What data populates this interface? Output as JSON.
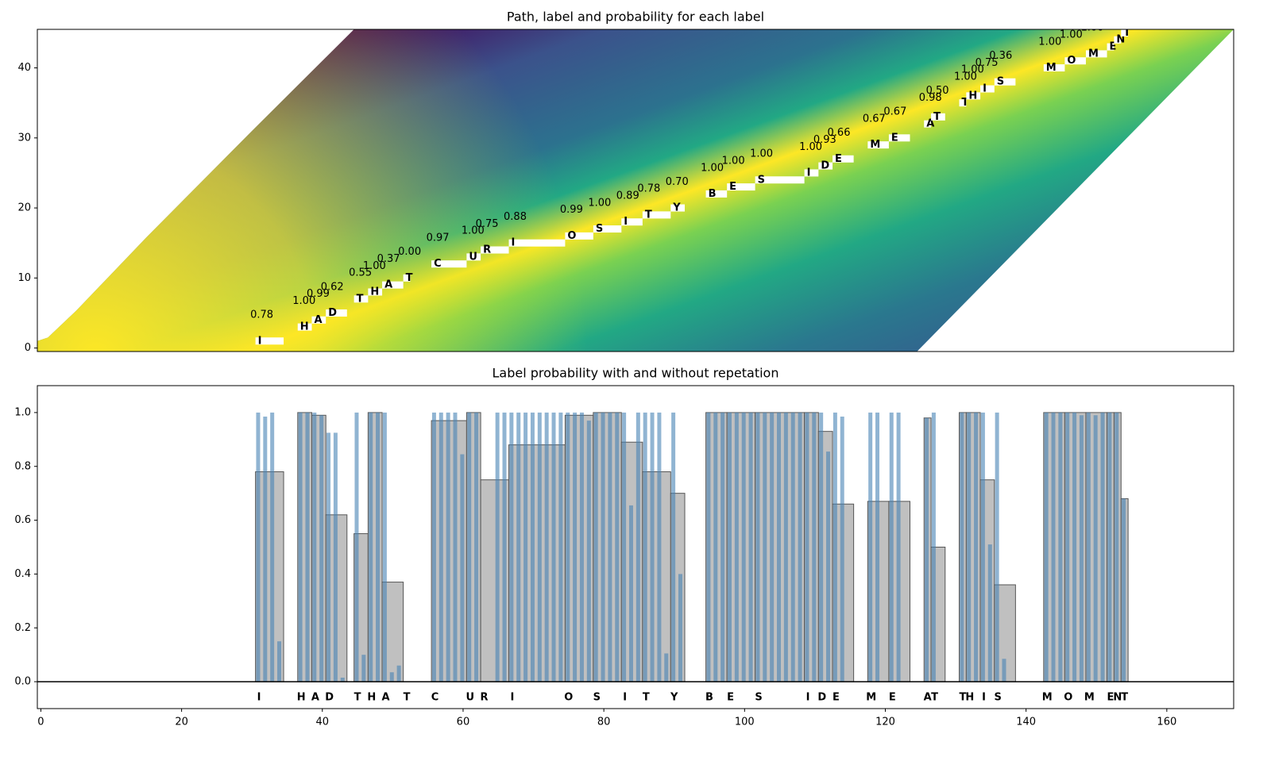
{
  "chart_data": [
    {
      "type": "trellis",
      "title": "Path, label and probability for each label",
      "xlim": [
        -0.5,
        169.5
      ],
      "ylim": [
        -0.5,
        45.5
      ],
      "yticks": [
        0,
        10,
        20,
        30,
        40
      ],
      "tokens": [
        {
          "label": "I",
          "row": 1,
          "start": 30.5,
          "end": 34.5,
          "score": 0.78,
          "score_label": "0.78"
        },
        {
          "label": "H",
          "row": 3,
          "start": 36.5,
          "end": 38.5,
          "score": 1,
          "score_label": "1.00"
        },
        {
          "label": "A",
          "row": 4,
          "start": 38.5,
          "end": 40.5,
          "score": 0.99,
          "score_label": "0.99"
        },
        {
          "label": "D",
          "row": 5,
          "start": 40.5,
          "end": 43.5,
          "score": 0.62,
          "score_label": "0.62"
        },
        {
          "label": "T",
          "row": 7,
          "start": 44.5,
          "end": 46.5,
          "score": 0.55,
          "score_label": "0.55"
        },
        {
          "label": "H",
          "row": 8,
          "start": 46.5,
          "end": 48.5,
          "score": 1,
          "score_label": "1.00"
        },
        {
          "label": "A",
          "row": 9,
          "start": 48.5,
          "end": 51.5,
          "score": 0.37,
          "score_label": "0.37"
        },
        {
          "label": "T",
          "row": 10,
          "start": 51.5,
          "end": 52.5,
          "score": 0,
          "score_label": "0.00"
        },
        {
          "label": "C",
          "row": 12,
          "start": 55.5,
          "end": 60.5,
          "score": 0.97,
          "score_label": "0.97"
        },
        {
          "label": "U",
          "row": 13,
          "start": 60.5,
          "end": 62.5,
          "score": 1,
          "score_label": "1.00"
        },
        {
          "label": "R",
          "row": 14,
          "start": 62.5,
          "end": 66.5,
          "score": 0.75,
          "score_label": "0.75"
        },
        {
          "label": "I",
          "row": 15,
          "start": 66.5,
          "end": 74.5,
          "score": 0.88,
          "score_label": "0.88"
        },
        {
          "label": "O",
          "row": 16,
          "start": 74.5,
          "end": 78.5,
          "score": 0.99,
          "score_label": "0.99"
        },
        {
          "label": "S",
          "row": 17,
          "start": 78.5,
          "end": 82.5,
          "score": 1,
          "score_label": "1.00"
        },
        {
          "label": "I",
          "row": 18,
          "start": 82.5,
          "end": 85.5,
          "score": 0.89,
          "score_label": "0.89"
        },
        {
          "label": "T",
          "row": 19,
          "start": 85.5,
          "end": 89.5,
          "score": 0.78,
          "score_label": "0.78"
        },
        {
          "label": "Y",
          "row": 20,
          "start": 89.5,
          "end": 91.5,
          "score": 0.7,
          "score_label": "0.70"
        },
        {
          "label": "B",
          "row": 22,
          "start": 94.5,
          "end": 97.5,
          "score": 1,
          "score_label": "1.00"
        },
        {
          "label": "E",
          "row": 23,
          "start": 97.5,
          "end": 101.5,
          "score": 1,
          "score_label": "1.00"
        },
        {
          "label": "S",
          "row": 24,
          "start": 101.5,
          "end": 108.5,
          "score": 1,
          "score_label": "1.00"
        },
        {
          "label": "I",
          "row": 25,
          "start": 108.5,
          "end": 110.5,
          "score": 1,
          "score_label": "1.00"
        },
        {
          "label": "D",
          "row": 26,
          "start": 110.5,
          "end": 112.5,
          "score": 0.93,
          "score_label": "0.93"
        },
        {
          "label": "E",
          "row": 27,
          "start": 112.5,
          "end": 115.5,
          "score": 0.66,
          "score_label": "0.66"
        },
        {
          "label": "M",
          "row": 29,
          "start": 117.5,
          "end": 120.5,
          "score": 0.67,
          "score_label": "0.67"
        },
        {
          "label": "E",
          "row": 30,
          "start": 120.5,
          "end": 123.5,
          "score": 0.67,
          "score_label": "0.67"
        },
        {
          "label": "A",
          "row": 32,
          "start": 125.5,
          "end": 126.5,
          "score": 0.98,
          "score_label": "0.98"
        },
        {
          "label": "T",
          "row": 33,
          "start": 126.5,
          "end": 128.5,
          "score": 0.5,
          "score_label": "0.50"
        },
        {
          "label": "T",
          "row": 35,
          "start": 130.5,
          "end": 131.5,
          "score": 1,
          "score_label": "1.00"
        },
        {
          "label": "H",
          "row": 36,
          "start": 131.5,
          "end": 133.5,
          "score": 1,
          "score_label": "1.00"
        },
        {
          "label": "I",
          "row": 37,
          "start": 133.5,
          "end": 135.5,
          "score": 0.75,
          "score_label": "0.75"
        },
        {
          "label": "S",
          "row": 38,
          "start": 135.5,
          "end": 138.5,
          "score": 0.36,
          "score_label": "0.36"
        },
        {
          "label": "M",
          "row": 40,
          "start": 142.5,
          "end": 145.5,
          "score": 1,
          "score_label": "1.00"
        },
        {
          "label": "O",
          "row": 41,
          "start": 145.5,
          "end": 148.5,
          "score": 1,
          "score_label": "1.00"
        },
        {
          "label": "M",
          "row": 42,
          "start": 148.5,
          "end": 151.5,
          "score": 1,
          "score_label": "1.00"
        },
        {
          "label": "E",
          "row": 43,
          "start": 151.5,
          "end": 152.5
        },
        {
          "label": "N",
          "row": 44,
          "start": 152.5,
          "end": 153.5
        },
        {
          "label": "T",
          "row": 45,
          "start": 153.5,
          "end": 154.5
        }
      ]
    },
    {
      "type": "bar",
      "title": "Label probability with and without repetation",
      "xlim": [
        -0.5,
        169.5
      ],
      "xticks": [
        0,
        20,
        40,
        60,
        80,
        100,
        120,
        140,
        160
      ],
      "ylim": [
        -0.1,
        1.1
      ],
      "yticks": [
        {
          "value": 0,
          "label": "0.0"
        },
        {
          "value": 0.2,
          "label": "0.2"
        },
        {
          "value": 0.4,
          "label": "0.4"
        },
        {
          "value": 0.6,
          "label": "0.6"
        },
        {
          "value": 0.8,
          "label": "0.8"
        },
        {
          "value": 1,
          "label": "1.0"
        }
      ],
      "segments": [
        {
          "label": "I",
          "start": 30.5,
          "end": 34.5,
          "value": 0.78
        },
        {
          "label": "H",
          "start": 36.5,
          "end": 38.5,
          "value": 1
        },
        {
          "label": "A",
          "start": 38.5,
          "end": 40.5,
          "value": 0.99
        },
        {
          "label": "D",
          "start": 40.5,
          "end": 43.5,
          "value": 0.62
        },
        {
          "label": "T",
          "start": 44.5,
          "end": 46.5,
          "value": 0.55
        },
        {
          "label": "H",
          "start": 46.5,
          "end": 48.5,
          "value": 1
        },
        {
          "label": "A",
          "start": 48.5,
          "end": 51.5,
          "value": 0.37
        },
        {
          "label": "T",
          "start": 51.5,
          "end": 52.5,
          "value": 0
        },
        {
          "label": "C",
          "start": 55.5,
          "end": 60.5,
          "value": 0.97
        },
        {
          "label": "U",
          "start": 60.5,
          "end": 62.5,
          "value": 1
        },
        {
          "label": "R",
          "start": 62.5,
          "end": 66.5,
          "value": 0.75
        },
        {
          "label": "I",
          "start": 66.5,
          "end": 74.5,
          "value": 0.88
        },
        {
          "label": "O",
          "start": 74.5,
          "end": 78.5,
          "value": 0.99
        },
        {
          "label": "S",
          "start": 78.5,
          "end": 82.5,
          "value": 1
        },
        {
          "label": "I",
          "start": 82.5,
          "end": 85.5,
          "value": 0.89
        },
        {
          "label": "T",
          "start": 85.5,
          "end": 89.5,
          "value": 0.78
        },
        {
          "label": "Y",
          "start": 89.5,
          "end": 91.5,
          "value": 0.7
        },
        {
          "label": "B",
          "start": 94.5,
          "end": 97.5,
          "value": 1
        },
        {
          "label": "E",
          "start": 97.5,
          "end": 101.5,
          "value": 1
        },
        {
          "label": "S",
          "start": 101.5,
          "end": 108.5,
          "value": 1
        },
        {
          "label": "I",
          "start": 108.5,
          "end": 110.5,
          "value": 1
        },
        {
          "label": "D",
          "start": 110.5,
          "end": 112.5,
          "value": 0.93
        },
        {
          "label": "E",
          "start": 112.5,
          "end": 115.5,
          "value": 0.66
        },
        {
          "label": "M",
          "start": 117.5,
          "end": 120.5,
          "value": 0.67
        },
        {
          "label": "E",
          "start": 120.5,
          "end": 123.5,
          "value": 0.67
        },
        {
          "label": "A",
          "start": 125.5,
          "end": 126.5,
          "value": 0.98
        },
        {
          "label": "T",
          "start": 126.5,
          "end": 128.5,
          "value": 0.5
        },
        {
          "label": "T",
          "start": 130.5,
          "end": 131.5,
          "value": 1
        },
        {
          "label": "H",
          "start": 131.5,
          "end": 133.5,
          "value": 1
        },
        {
          "label": "I",
          "start": 133.5,
          "end": 135.5,
          "value": 0.75
        },
        {
          "label": "S",
          "start": 135.5,
          "end": 138.5,
          "value": 0.36
        },
        {
          "label": "M",
          "start": 142.5,
          "end": 145.5,
          "value": 1
        },
        {
          "label": "O",
          "start": 145.5,
          "end": 148.5,
          "value": 1
        },
        {
          "label": "M",
          "start": 148.5,
          "end": 151.5,
          "value": 1
        },
        {
          "label": "E",
          "start": 151.5,
          "end": 152.5,
          "value": 1
        },
        {
          "label": "N",
          "start": 152.5,
          "end": 153.5,
          "value": 1
        },
        {
          "label": "T",
          "start": 153.5,
          "end": 154.5,
          "value": 0.68
        }
      ],
      "frames": {
        "x": [
          31,
          32,
          33,
          34,
          37,
          38,
          39,
          40,
          41,
          42,
          43,
          45,
          46,
          47,
          48,
          49,
          50,
          51,
          56,
          57,
          58,
          59,
          60,
          61,
          62,
          65,
          66,
          67,
          68,
          69,
          70,
          71,
          72,
          73,
          74,
          75,
          76,
          77,
          78,
          79,
          80,
          81,
          82,
          83,
          84,
          85,
          86,
          87,
          88,
          89,
          90,
          91,
          95,
          96,
          97,
          98,
          99,
          100,
          101,
          102,
          103,
          104,
          105,
          106,
          107,
          108,
          109,
          110,
          111,
          112,
          113,
          114,
          118,
          119,
          121,
          122,
          126,
          127,
          131,
          132,
          133,
          134,
          135,
          136,
          137,
          143,
          144,
          145,
          146,
          147,
          148,
          149,
          150,
          151,
          152,
          153,
          154
        ],
        "values": [
          1,
          0.985,
          1,
          0.15,
          1,
          1,
          1,
          0.99,
          0.925,
          0.925,
          0.015,
          1,
          0.1,
          1,
          1,
          1,
          0.035,
          0.06,
          1,
          1,
          1,
          1,
          0.845,
          1,
          1,
          1,
          1,
          1,
          1,
          1,
          1,
          1,
          1,
          1,
          1,
          1,
          1,
          1,
          0.97,
          1,
          1,
          1,
          1,
          1,
          0.655,
          1,
          1,
          1,
          1,
          0.105,
          1,
          0.4,
          1,
          1,
          1,
          1,
          1,
          1,
          1,
          1,
          1,
          1,
          1,
          1,
          1,
          1,
          1,
          1,
          1,
          0.855,
          1,
          0.985,
          1,
          1,
          1,
          1,
          0.98,
          1,
          1,
          1,
          1,
          1,
          0.51,
          1,
          0.085,
          1,
          1,
          1,
          1,
          1,
          0.99,
          1,
          0.99,
          1,
          1,
          1,
          0.68
        ]
      }
    }
  ]
}
